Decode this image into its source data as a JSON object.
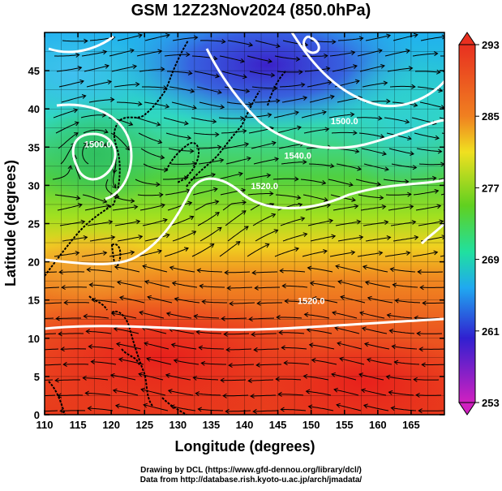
{
  "title": "GSM 12Z23Nov2024 (850.0hPa)",
  "axes": {
    "xlabel": "Longitude (degrees)",
    "ylabel": "Latitude  (degrees)",
    "xlim": [
      110,
      170
    ],
    "ylim": [
      0,
      50
    ],
    "x_ticks": [
      "110",
      "115",
      "120",
      "125",
      "130",
      "135",
      "140",
      "145",
      "150",
      "155",
      "160",
      "165"
    ],
    "y_ticks": [
      "0",
      "5",
      "10",
      "15",
      "20",
      "25",
      "30",
      "35",
      "40",
      "45"
    ]
  },
  "colorbar": {
    "labels": [
      "293",
      "285",
      "277",
      "269",
      "261",
      "253"
    ],
    "range": [
      253,
      293
    ],
    "colors": [
      "#d020c0",
      "#3020d0",
      "#20a8f0",
      "#20e0a0",
      "#60d020",
      "#f0e020",
      "#f08020",
      "#e83020"
    ]
  },
  "contours": [
    {
      "label": "1520.0",
      "lon": 150,
      "lat": 14.5
    },
    {
      "label": "1520.0",
      "lon": 143,
      "lat": 29.5
    },
    {
      "label": "1540.0",
      "lon": 148,
      "lat": 33.5
    },
    {
      "label": "1500.0",
      "lon": 155,
      "lat": 38
    },
    {
      "label": "1500.0",
      "lon": 118,
      "lat": 35
    }
  ],
  "credits": {
    "line1": "Drawing by DCL (https://www.gfd-dennou.org/library/dcl/)",
    "line2": "Data from http://database.rish.kyoto-u.ac.jp/arch/jmadata/"
  }
}
